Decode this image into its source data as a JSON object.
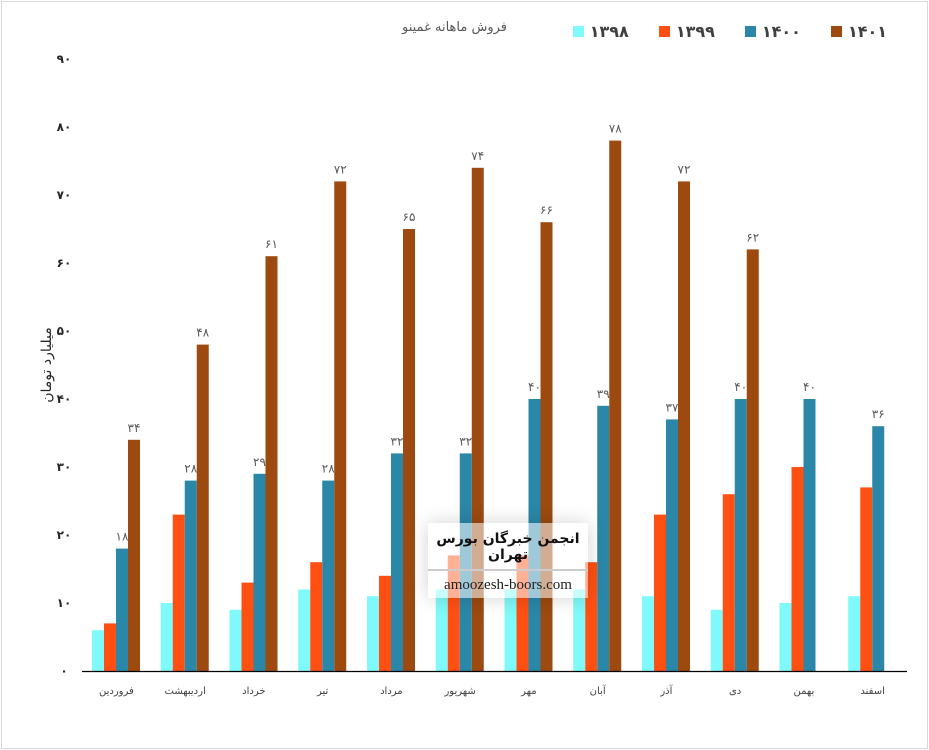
{
  "chart_data": {
    "type": "bar",
    "title": "فروش ماهانه غمینو",
    "ylabel": "میلیارد تومان",
    "xlabel": "",
    "ylim": [
      0,
      90
    ],
    "yticks": [
      0,
      10,
      20,
      30,
      40,
      50,
      60,
      70,
      80,
      90
    ],
    "grid": false,
    "legend_position": "top-right",
    "categories": [
      "فروردین",
      "اردیبهشت",
      "خرداد",
      "تیر",
      "مرداد",
      "شهریور",
      "مهر",
      "آبان",
      "آذر",
      "دی",
      "بهمن",
      "اسفند"
    ],
    "series": [
      {
        "name": "۱۳۹۸",
        "color": "#7ff9f9",
        "values": [
          6,
          10,
          9,
          12,
          11,
          12,
          12,
          12,
          11,
          9,
          10,
          11
        ],
        "labels": false
      },
      {
        "name": "۱۳۹۹",
        "color": "#ff5014",
        "values": [
          7,
          23,
          13,
          16,
          14,
          17,
          17,
          16,
          23,
          26,
          30,
          27
        ],
        "labels": false
      },
      {
        "name": "۱۴۰۰",
        "color": "#2a87a8",
        "values": [
          18,
          28,
          29,
          28,
          32,
          32,
          40,
          39,
          37,
          40,
          40,
          36
        ],
        "labels": true
      },
      {
        "name": "۱۴۰۱",
        "color": "#9c4a10",
        "values": [
          34,
          48,
          61,
          72,
          65,
          74,
          66,
          78,
          72,
          62,
          null,
          null
        ],
        "labels": true
      }
    ]
  },
  "watermark": {
    "title": "انجمن خبرگان بورس تهران",
    "site": "amoozesh-boors.com"
  }
}
